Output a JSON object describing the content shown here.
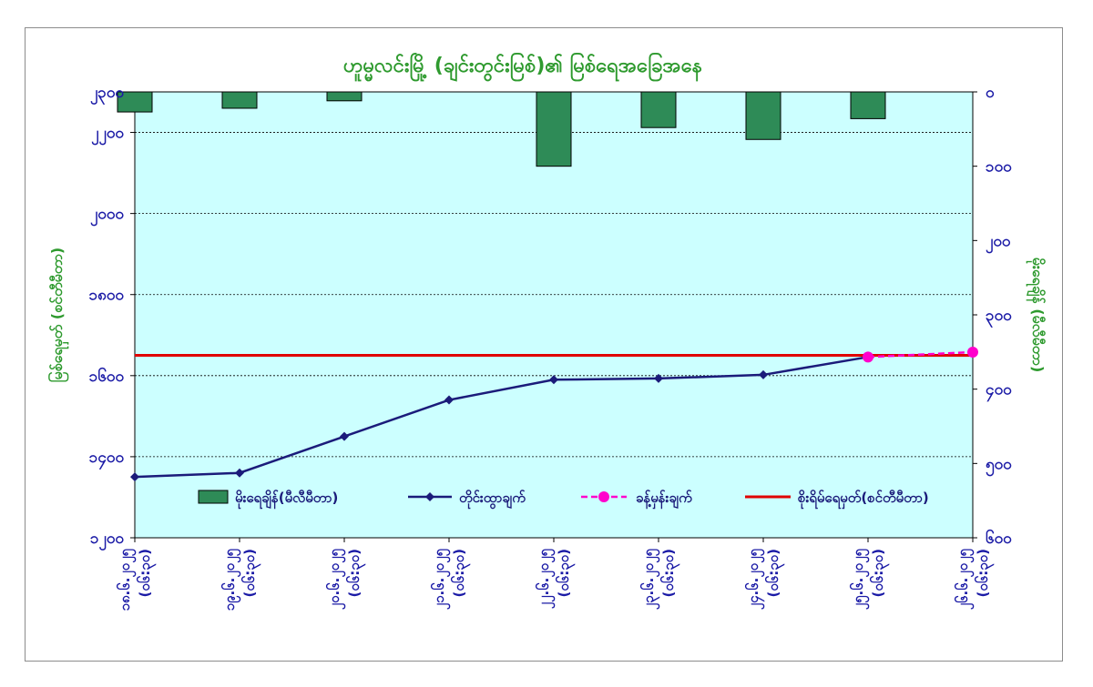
{
  "chart_data": {
    "type": "combo-bar-line",
    "title": "ဟူမ္မလင်းမြို့ (ချင်းတွင်းမြစ်)၏ မြစ်ရေအခြေအနေ",
    "ylabel_left": "မြစ်ရေမှတ် (စင်တီမီတာ)",
    "ylabel_right": "မိုးရေချိန် (မီလီမီတာ)",
    "left_axis": {
      "min": 1200,
      "max": 2300,
      "step": 200,
      "tick_labels": [
        "၁၂၀၀",
        "၁၄၀၀",
        "၁၆၀၀",
        "၁၈၀၀",
        "၂၀၀၀",
        "၂၂၀၀",
        "၂၃၀၀"
      ]
    },
    "right_axis": {
      "min": 0,
      "max": 600,
      "step": 100,
      "reversed": true,
      "tick_labels": [
        "၀",
        "၁၀၀",
        "၂၀၀",
        "၃၀၀",
        "၄၀၀",
        "၅၀၀",
        "၆၀၀"
      ]
    },
    "categories": [
      [
        "၁၈.၆.၂၀၂၅",
        "(၀၆:၃၀)"
      ],
      [
        "၁၉.၆.၂၀၂၅",
        "(၀၆:၃၀)"
      ],
      [
        "၂၀.၆.၂၀၂၅",
        "(၀၆:၃၀)"
      ],
      [
        "၂၁.၆.၂၀၂၅",
        "(၀၆:၃၀)"
      ],
      [
        "၂၂.၆.၂၀၂၅",
        "(၀၆:၃၀)"
      ],
      [
        "၂၃.၆.၂၀၂၅",
        "(၀၆:၃၀)"
      ],
      [
        "၂၄.၆.၂၀၂၅",
        "(၀၆:၃၀)"
      ],
      [
        "၂၅.၆.၂၀၂၅",
        "(၀၆:၃၀)"
      ],
      [
        "၂၆.၆.၂၀၂၅",
        "(၀၆:၃၀)"
      ]
    ],
    "series": [
      {
        "name": "မိုးရေချိန်(မီလီမီတာ)",
        "kind": "bar",
        "axis": "right",
        "color": "#2e8b57",
        "values": [
          27,
          22,
          12,
          null,
          100,
          48,
          64,
          36,
          null
        ]
      },
      {
        "name": "တိုင်းထွာချက်",
        "kind": "line",
        "axis": "left",
        "color": "#1b1b7a",
        "values": [
          1350,
          1360,
          1450,
          1540,
          1590,
          1593,
          1602,
          1646,
          null
        ]
      },
      {
        "name": "ခန့်မှန်းချက်",
        "kind": "line-dashed",
        "axis": "left",
        "color": "#ff00cc",
        "values": [
          null,
          null,
          null,
          null,
          null,
          null,
          null,
          1646,
          1658
        ]
      },
      {
        "name": "စိုးရိမ်ရေမှတ်(စင်တီမီတာ)",
        "kind": "hline",
        "axis": "left",
        "color": "#e00000",
        "value": 1650
      }
    ],
    "legend_position": "bottom-inside",
    "grid": true,
    "plot_background": "#ccffff"
  }
}
